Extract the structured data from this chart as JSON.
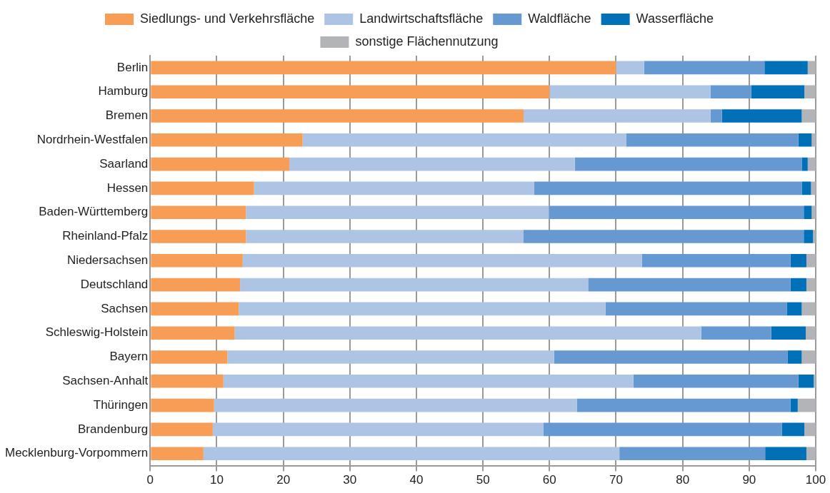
{
  "chart_data": {
    "type": "bar",
    "orientation": "horizontal",
    "stacked": true,
    "categories": [
      "Berlin",
      "Hamburg",
      "Bremen",
      "Nordrhein-Westfalen",
      "Saarland",
      "Hessen",
      "Baden-Württemberg",
      "Rheinland-Pfalz",
      "Niedersachsen",
      "Deutschland",
      "Sachsen",
      "Schleswig-Holstein",
      "Bayern",
      "Sachsen-Anhalt",
      "Thüringen",
      "Brandenburg",
      "Mecklenburg-Vorpommern"
    ],
    "series": [
      {
        "name": "Siedlungs- und Verkehrsfläche",
        "color": "#f79d55",
        "values": [
          70.0,
          60.0,
          56.1,
          22.9,
          20.9,
          15.6,
          14.4,
          14.4,
          13.9,
          13.5,
          13.3,
          12.7,
          11.6,
          11.0,
          9.6,
          9.4,
          8.0
        ]
      },
      {
        "name": "Landwirtschaftsfläche",
        "color": "#aec4e5",
        "values": [
          4.2,
          24.2,
          28.1,
          48.6,
          42.9,
          42.1,
          45.5,
          41.7,
          60.0,
          52.3,
          55.1,
          70.1,
          49.1,
          61.6,
          54.5,
          49.7,
          62.5
        ]
      },
      {
        "name": "Waldfläche",
        "color": "#6699d1",
        "values": [
          18.1,
          6.1,
          1.7,
          25.9,
          34.1,
          40.2,
          38.3,
          42.1,
          22.3,
          30.4,
          27.3,
          10.5,
          35.1,
          24.8,
          32.1,
          35.8,
          21.9
        ]
      },
      {
        "name": "Wasserfläche",
        "color": "#0070b9",
        "values": [
          6.5,
          8.0,
          12.0,
          2.0,
          0.9,
          1.4,
          1.2,
          1.4,
          2.4,
          2.4,
          2.2,
          5.2,
          2.1,
          2.3,
          1.1,
          3.4,
          6.2
        ]
      },
      {
        "name": "sonstige Flächennutzung",
        "color": "#b3b4b7",
        "values": [
          1.2,
          1.7,
          2.1,
          0.6,
          1.2,
          0.7,
          0.6,
          0.4,
          1.4,
          1.4,
          2.1,
          1.5,
          2.1,
          0.3,
          2.7,
          1.7,
          1.4
        ]
      }
    ],
    "xlim": [
      0,
      100
    ],
    "xticks": [
      0,
      10,
      20,
      30,
      40,
      50,
      60,
      70,
      80,
      90,
      100
    ],
    "grid": "x",
    "legend": "top"
  }
}
